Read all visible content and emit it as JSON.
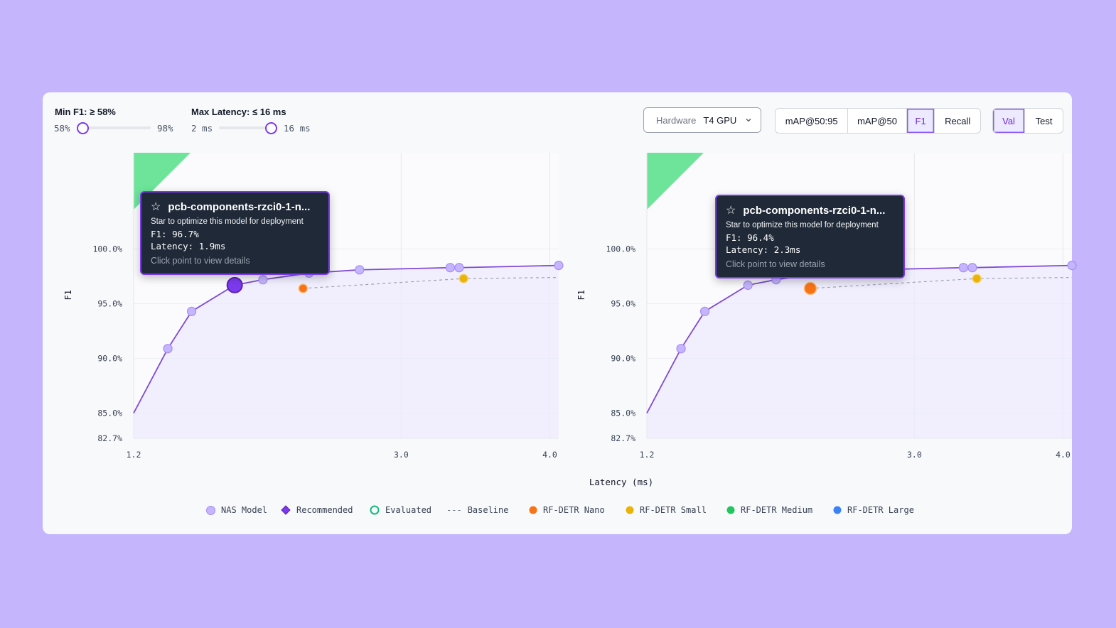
{
  "filters": {
    "min_f1": {
      "label": "Min F1: ≥ 58%",
      "min_label": "58%",
      "max_label": "98%",
      "value_fraction": 0.0
    },
    "max_latency": {
      "label": "Max Latency: ≤ 16 ms",
      "min_label": "2 ms",
      "max_label": "16 ms",
      "value_fraction": 1.0
    }
  },
  "hardware": {
    "label": "Hardware",
    "value": "T4 GPU",
    "icon": "chevron-down-icon"
  },
  "metric_tabs": [
    {
      "label": "mAP@50:95",
      "active": false
    },
    {
      "label": "mAP@50",
      "active": false
    },
    {
      "label": "F1",
      "active": true
    },
    {
      "label": "Recall",
      "active": false
    }
  ],
  "split_tabs": [
    {
      "label": "Val",
      "active": true
    },
    {
      "label": "Test",
      "active": false
    }
  ],
  "tooltips": [
    {
      "title": "pcb-components-rzci0-1-n...",
      "subtitle": "Star to optimize this model for deployment",
      "f1": "F1: 96.7%",
      "latency": "Latency: 1.9ms",
      "footer": "Click point to view details"
    },
    {
      "title": "pcb-components-rzci0-1-n...",
      "subtitle": "Star to optimize this model for deployment",
      "f1": "F1: 96.4%",
      "latency": "Latency: 2.3ms",
      "footer": "Click point to view details"
    }
  ],
  "xlabel": "Latency (ms)",
  "legend": [
    {
      "label": "NAS Model",
      "color": "#c4b5fd",
      "shape": "circle"
    },
    {
      "label": "Recommended",
      "color": "#7c3aed",
      "shape": "diamond"
    },
    {
      "label": "Evaluated",
      "color": "#10b981",
      "shape": "ring"
    },
    {
      "label": "Baseline",
      "color": "#9ca3af",
      "shape": "dash",
      "glyph": "---"
    },
    {
      "label": "RF-DETR Nano",
      "color": "#f97316",
      "shape": "circle"
    },
    {
      "label": "RF-DETR Small",
      "color": "#eab308",
      "shape": "circle"
    },
    {
      "label": "RF-DETR Medium",
      "color": "#22c55e",
      "shape": "circle"
    },
    {
      "label": "RF-DETR Large",
      "color": "#3b82f6",
      "shape": "circle"
    }
  ],
  "chart_data": [
    {
      "type": "scatter",
      "xlabel": "Latency (ms)",
      "ylabel": "F1",
      "x_ticks": [
        "1.2",
        "3.0",
        "4.0"
      ],
      "y_ticks": [
        "82.7%",
        "85.0%",
        "90.0%",
        "95.0%",
        "100.0%"
      ],
      "xlim": [
        1.2,
        4.06
      ],
      "ylim": [
        82.7,
        108.8
      ],
      "grid": true,
      "nas_frontier": [
        [
          1.2,
          85.0
        ],
        [
          1.43,
          90.9
        ],
        [
          1.59,
          94.3
        ],
        [
          1.88,
          96.7
        ],
        [
          2.07,
          97.2
        ],
        [
          2.38,
          97.8
        ],
        [
          2.72,
          98.1
        ],
        [
          3.33,
          98.3
        ],
        [
          3.39,
          98.3
        ],
        [
          4.06,
          98.5
        ]
      ],
      "highlighted": {
        "x": 1.88,
        "y": 96.7
      },
      "baseline": [
        [
          2.34,
          96.4
        ],
        [
          3.42,
          97.3
        ],
        [
          4.06,
          97.4
        ]
      ],
      "rf_detr_nano": [
        [
          2.34,
          96.4
        ]
      ],
      "rf_detr_small": [
        [
          3.42,
          97.3
        ]
      ]
    },
    {
      "type": "scatter",
      "xlabel": "Latency (ms)",
      "ylabel": "F1",
      "x_ticks": [
        "1.2",
        "3.0",
        "4.0"
      ],
      "y_ticks": [
        "82.7%",
        "85.0%",
        "90.0%",
        "95.0%",
        "100.0%"
      ],
      "xlim": [
        1.2,
        4.06
      ],
      "ylim": [
        82.7,
        108.8
      ],
      "grid": true,
      "nas_frontier": [
        [
          1.2,
          85.0
        ],
        [
          1.43,
          90.9
        ],
        [
          1.59,
          94.3
        ],
        [
          1.88,
          96.7
        ],
        [
          2.07,
          97.2
        ],
        [
          2.38,
          97.8
        ],
        [
          2.72,
          98.1
        ],
        [
          3.33,
          98.3
        ],
        [
          3.39,
          98.3
        ],
        [
          4.06,
          98.5
        ]
      ],
      "highlighted": {
        "x": 2.3,
        "y": 96.4
      },
      "baseline": [
        [
          2.3,
          96.4
        ],
        [
          3.42,
          97.3
        ],
        [
          4.06,
          97.4
        ]
      ],
      "rf_detr_nano": [
        [
          2.3,
          96.4
        ]
      ],
      "rf_detr_small": [
        [
          3.42,
          97.3
        ]
      ]
    }
  ]
}
